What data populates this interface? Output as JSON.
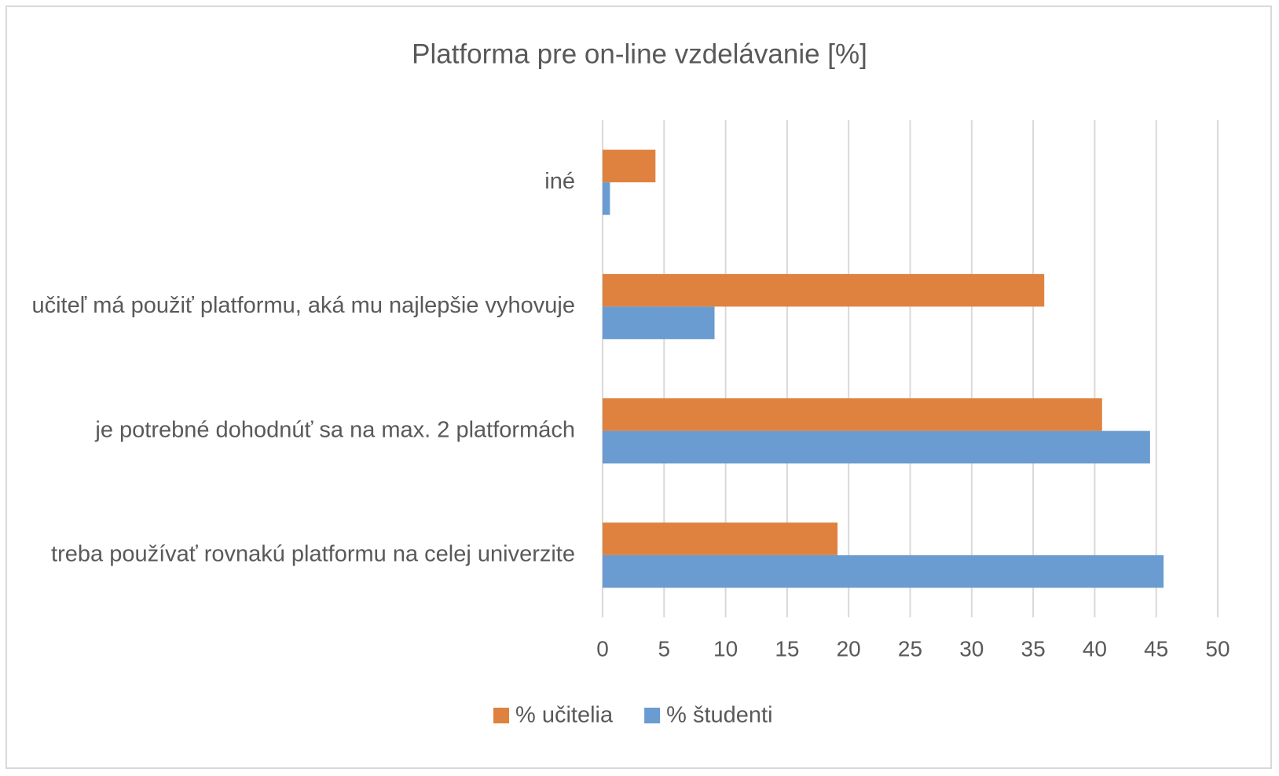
{
  "chart_data": {
    "type": "barh",
    "title": "Platforma pre on-line vzdelávanie [%]",
    "categories": [
      "iné",
      "učiteľ má použiť platformu, aká mu najlepšie vyhovuje",
      "je potrebné dohodnúť sa na max. 2 platformách",
      "treba používať rovnakú platformu na celej univerzite"
    ],
    "series": [
      {
        "name": "% učitelia",
        "color": "#e0823f",
        "values": [
          4.3,
          35.9,
          40.6,
          19.1
        ]
      },
      {
        "name": "% študenti",
        "color": "#6a9bd1",
        "values": [
          0.6,
          9.1,
          44.5,
          45.6
        ]
      }
    ],
    "xlim": [
      0,
      50
    ],
    "xticks": [
      0,
      5,
      10,
      15,
      20,
      25,
      30,
      35,
      40,
      45,
      50
    ],
    "grid": true,
    "legend": "bottom"
  }
}
